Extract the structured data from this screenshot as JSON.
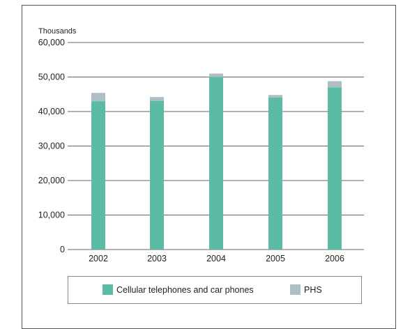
{
  "colors": {
    "cellular": "#5bbba5",
    "phs": "#aebec6",
    "grid": "#666666",
    "text": "#222222"
  },
  "chart_data": {
    "type": "bar",
    "stacked": true,
    "categories": [
      "2002",
      "2003",
      "2004",
      "2005",
      "2006"
    ],
    "series": [
      {
        "name": "Cellular telephones and car phones",
        "values": [
          43000,
          43100,
          50000,
          44100,
          47000
        ]
      },
      {
        "name": "PHS",
        "values": [
          2400,
          1100,
          1000,
          700,
          1800
        ]
      }
    ],
    "ylabel": "Thousands",
    "ylim": [
      0,
      60000
    ],
    "yticks": [
      "0",
      "10,000",
      "20,000",
      "30,000",
      "40,000",
      "50,000",
      "60,000"
    ],
    "grid": true,
    "legend_position": "bottom"
  },
  "legend": {
    "cellular_label": "Cellular telephones and car phones",
    "phs_label": "PHS"
  }
}
